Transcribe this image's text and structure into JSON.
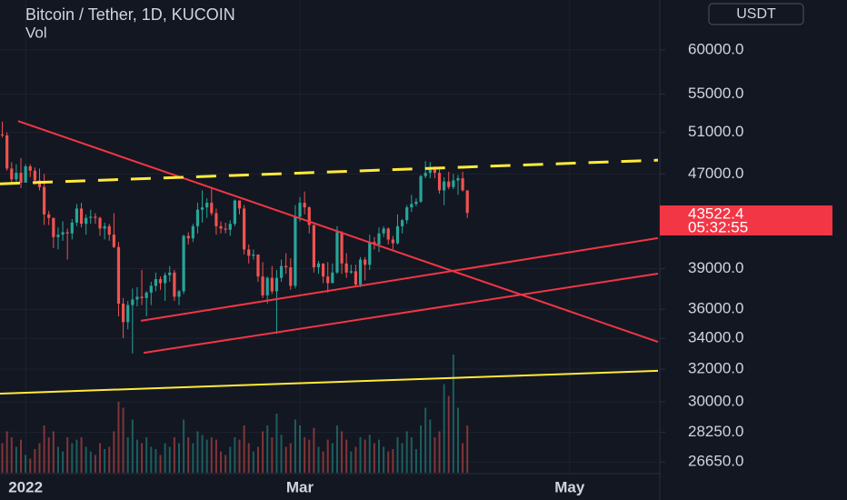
{
  "chart_data": {
    "type": "candlestick",
    "title": "Bitcoin / Tether, 1D, KUCOIN",
    "subtitle": "Vol",
    "currency": "USDT",
    "countdown": "05:32:55",
    "log_scale": true,
    "grid": true,
    "up_color": "#26a69a",
    "down_color": "#ef5350",
    "xlim": [
      -0.5,
      141
    ],
    "xticks": [
      {
        "value": 5,
        "label": "2022"
      },
      {
        "value": 64,
        "label": "Mar"
      },
      {
        "value": 122,
        "label": "May"
      }
    ],
    "ylim": [
      26090,
      66200
    ],
    "yticks": [
      {
        "value": 60000,
        "label": "60000.0"
      },
      {
        "value": 55000,
        "label": "55000.0"
      },
      {
        "value": 51000,
        "label": "51000.0"
      },
      {
        "value": 47000,
        "label": "47000.0"
      },
      {
        "value": 39000,
        "label": "39000.0"
      },
      {
        "value": 36000,
        "label": "36000.0"
      },
      {
        "value": 34000,
        "label": "34000.0"
      },
      {
        "value": 32000,
        "label": "32000.0"
      },
      {
        "value": 30000,
        "label": "30000.0"
      },
      {
        "value": 28250,
        "label": "28250.0"
      },
      {
        "value": 26650,
        "label": "26650.0"
      }
    ],
    "series": [
      {
        "name": "Bitcoin / Tether",
        "values": [
          [
            50800,
            52100,
            50500,
            50700
          ],
          [
            50700,
            51000,
            47300,
            47500
          ],
          [
            47500,
            48100,
            46100,
            46500
          ],
          [
            46500,
            47900,
            46000,
            47100
          ],
          [
            47100,
            48500,
            45700,
            46200
          ],
          [
            46200,
            47900,
            46200,
            47700
          ],
          [
            47700,
            47900,
            46700,
            47300
          ],
          [
            47300,
            47600,
            46000,
            46400
          ],
          [
            46400,
            47500,
            45500,
            45800
          ],
          [
            45800,
            47000,
            42500,
            43400
          ],
          [
            43400,
            43700,
            42500,
            43100
          ],
          [
            43100,
            43100,
            40600,
            41500
          ],
          [
            41500,
            42300,
            40500,
            41700
          ],
          [
            41700,
            42800,
            41200,
            41900
          ],
          [
            41900,
            42200,
            39700,
            41800
          ],
          [
            41800,
            43000,
            41300,
            42700
          ],
          [
            42700,
            44300,
            42400,
            43900
          ],
          [
            43900,
            44400,
            42300,
            42600
          ],
          [
            42600,
            43400,
            41700,
            43100
          ],
          [
            43100,
            43800,
            42600,
            43200
          ],
          [
            43200,
            43500,
            42600,
            43100
          ],
          [
            43100,
            43200,
            41600,
            42200
          ],
          [
            42200,
            42700,
            41300,
            42400
          ],
          [
            42400,
            42600,
            41200,
            41700
          ],
          [
            41700,
            43500,
            40600,
            40700
          ],
          [
            40700,
            41100,
            35500,
            36400
          ],
          [
            36400,
            36800,
            34000,
            35100
          ],
          [
            35100,
            36600,
            34600,
            36300
          ],
          [
            36300,
            37500,
            33000,
            36700
          ],
          [
            36700,
            37600,
            36200,
            36900
          ],
          [
            36900,
            38900,
            36300,
            36800
          ],
          [
            36800,
            37300,
            35500,
            37200
          ],
          [
            37200,
            38000,
            36300,
            37700
          ],
          [
            37700,
            38700,
            37300,
            38200
          ],
          [
            38200,
            38400,
            37400,
            37900
          ],
          [
            37900,
            38700,
            36600,
            38500
          ],
          [
            38500,
            39200,
            38000,
            38700
          ],
          [
            38700,
            38900,
            36600,
            36900
          ],
          [
            36900,
            37400,
            36300,
            37300
          ],
          [
            37300,
            41700,
            37100,
            41600
          ],
          [
            41600,
            41900,
            40900,
            41400
          ],
          [
            41400,
            42600,
            41100,
            42400
          ],
          [
            42400,
            44400,
            41800,
            43800
          ],
          [
            43800,
            45500,
            42700,
            44000
          ],
          [
            44000,
            44800,
            43100,
            44400
          ],
          [
            44400,
            45800,
            43300,
            43500
          ],
          [
            43500,
            43900,
            41700,
            42400
          ],
          [
            42400,
            42800,
            41800,
            42200
          ],
          [
            42200,
            42700,
            41800,
            42100
          ],
          [
            42100,
            42900,
            41600,
            42600
          ],
          [
            42600,
            44700,
            42400,
            44600
          ],
          [
            44600,
            44600,
            43400,
            43900
          ],
          [
            43900,
            44200,
            40100,
            40500
          ],
          [
            40500,
            40900,
            39400,
            40000
          ],
          [
            40000,
            40500,
            39700,
            40100
          ],
          [
            40100,
            40100,
            38000,
            38400
          ],
          [
            38400,
            39500,
            36800,
            37000
          ],
          [
            37000,
            38400,
            36400,
            38300
          ],
          [
            38300,
            39200,
            37100,
            37300
          ],
          [
            37300,
            38900,
            34300,
            38300
          ],
          [
            38300,
            39700,
            38000,
            39200
          ],
          [
            39200,
            40200,
            38600,
            39100
          ],
          [
            39100,
            39800,
            37400,
            37700
          ],
          [
            37700,
            44200,
            37500,
            43200
          ],
          [
            43200,
            44900,
            42800,
            44400
          ],
          [
            44400,
            45400,
            43400,
            44000
          ],
          [
            44000,
            44100,
            41800,
            42500
          ],
          [
            42500,
            42500,
            38700,
            39100
          ],
          [
            39100,
            39600,
            38600,
            39400
          ],
          [
            39400,
            39400,
            37900,
            38400
          ],
          [
            38400,
            39500,
            37200,
            37900
          ],
          [
            37900,
            39400,
            37900,
            38700
          ],
          [
            38700,
            42400,
            38600,
            41900
          ],
          [
            41900,
            42000,
            38600,
            39400
          ],
          [
            39400,
            40200,
            38300,
            38700
          ],
          [
            38700,
            39300,
            38600,
            38800
          ],
          [
            38800,
            39300,
            37600,
            37800
          ],
          [
            37800,
            39900,
            37600,
            39700
          ],
          [
            39700,
            39900,
            38100,
            39300
          ],
          [
            39300,
            41700,
            38900,
            41100
          ],
          [
            41100,
            41500,
            40500,
            40900
          ],
          [
            40900,
            42300,
            40300,
            41800
          ],
          [
            41800,
            42400,
            41500,
            42200
          ],
          [
            42200,
            42300,
            40900,
            41300
          ],
          [
            41300,
            41600,
            40500,
            41000
          ],
          [
            41000,
            43400,
            40900,
            42400
          ],
          [
            42400,
            43000,
            41800,
            42900
          ],
          [
            42900,
            44200,
            42600,
            44000
          ],
          [
            44000,
            45100,
            43600,
            44300
          ],
          [
            44300,
            44800,
            44100,
            44500
          ],
          [
            44500,
            46900,
            44400,
            46800
          ],
          [
            46800,
            48200,
            46600,
            47100
          ],
          [
            47100,
            48100,
            46600,
            47400
          ],
          [
            47400,
            47700,
            46600,
            47100
          ],
          [
            47100,
            47400,
            45200,
            45500
          ],
          [
            45500,
            46700,
            44200,
            46300
          ],
          [
            46300,
            47200,
            45600,
            45800
          ],
          [
            45800,
            47000,
            45600,
            46400
          ],
          [
            46400,
            46900,
            45100,
            46600
          ],
          [
            46600,
            47200,
            45400,
            45500
          ],
          [
            45500,
            45500,
            43100,
            43522.4
          ]
        ]
      }
    ],
    "volume_lim": [
      0,
      100
    ],
    "volume": [
      25,
      35,
      30,
      22,
      28,
      15,
      12,
      20,
      25,
      40,
      30,
      35,
      22,
      18,
      30,
      25,
      28,
      30,
      22,
      18,
      15,
      25,
      20,
      22,
      35,
      60,
      55,
      30,
      45,
      28,
      25,
      30,
      22,
      20,
      15,
      25,
      22,
      30,
      25,
      45,
      30,
      25,
      35,
      32,
      28,
      30,
      28,
      18,
      15,
      22,
      30,
      28,
      40,
      25,
      18,
      22,
      35,
      40,
      30,
      50,
      32,
      22,
      25,
      45,
      40,
      30,
      28,
      38,
      22,
      18,
      28,
      25,
      40,
      35,
      28,
      18,
      22,
      30,
      28,
      32,
      25,
      28,
      22,
      18,
      20,
      30,
      25,
      35,
      30,
      20,
      40,
      55,
      45,
      30,
      35,
      75,
      65,
      100,
      55,
      25,
      40
    ],
    "drawings": [
      {
        "color": "#f23645",
        "dashed": false,
        "points": [
          [
            3.4,
            52150
          ],
          [
            141,
            33760
          ]
        ]
      },
      {
        "color": "#f23645",
        "dashed": false,
        "points": [
          [
            30.4,
            33040
          ],
          [
            141,
            38620
          ]
        ]
      },
      {
        "color": "#f23645",
        "dashed": false,
        "points": [
          [
            29.8,
            35190
          ],
          [
            141,
            41420
          ]
        ]
      },
      {
        "color": "#ffeb3b",
        "dashed": true,
        "points": [
          [
            -0.5,
            46090
          ],
          [
            141,
            48290
          ]
        ]
      },
      {
        "color": "#ffeb3b",
        "dashed": false,
        "points": [
          [
            -0.5,
            30490
          ],
          [
            141,
            31890
          ]
        ]
      }
    ]
  }
}
